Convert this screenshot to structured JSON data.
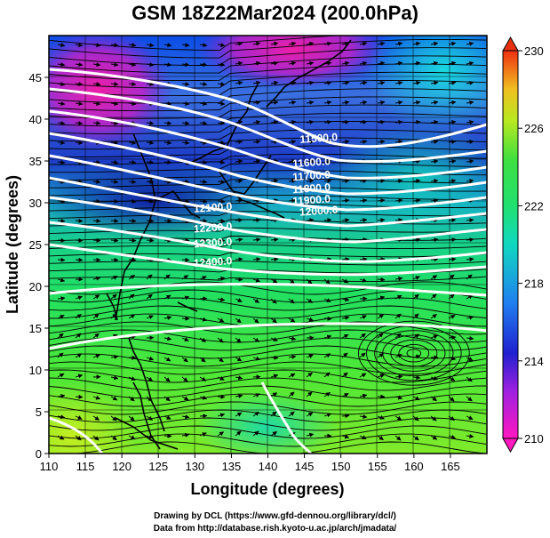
{
  "title": "GSM 18Z22Mar2024 (200.0hPa)",
  "xlabel": "Longitude (degrees)",
  "ylabel": "Latitude  (degrees)",
  "credit_line1": "Drawing by DCL (https://www.gfd-dennou.org/library/dcl/)",
  "credit_line2": "Data from http://database.rish.kyoto-u.ac.jp/arch/jmadata/",
  "chart_data": {
    "type": "heatmap",
    "title": "GSM 18Z22Mar2024 (200.0hPa)",
    "xlabel": "Longitude (degrees)",
    "ylabel": "Latitude  (degrees)",
    "xlim": [
      110,
      170
    ],
    "ylim": [
      0,
      50
    ],
    "xticks": [
      110,
      115,
      120,
      125,
      130,
      135,
      140,
      145,
      150,
      155,
      160,
      165
    ],
    "yticks": [
      0,
      5,
      10,
      15,
      20,
      25,
      30,
      35,
      40,
      45
    ],
    "colorbar": {
      "min": 210,
      "max": 230,
      "ticks": [
        210,
        214,
        218,
        222,
        226,
        230
      ]
    },
    "contour_labels": [
      {
        "text": "11500.0",
        "lon": 147,
        "lat": 37.3
      },
      {
        "text": "11600.0",
        "lon": 146,
        "lat": 34.4
      },
      {
        "text": "11700.0",
        "lon": 146,
        "lat": 32.8
      },
      {
        "text": "11800.0",
        "lon": 146,
        "lat": 31.3
      },
      {
        "text": "11900.0",
        "lon": 146,
        "lat": 29.9
      },
      {
        "text": "12000.0",
        "lon": 147,
        "lat": 28.6
      },
      {
        "text": "12100.0",
        "lon": 132.5,
        "lat": 29.0
      },
      {
        "text": "12200.0",
        "lon": 132.5,
        "lat": 26.6
      },
      {
        "text": "12300.0",
        "lon": 132.5,
        "lat": 24.8
      },
      {
        "text": "12400.0",
        "lon": 132.5,
        "lat": 22.5
      }
    ]
  }
}
